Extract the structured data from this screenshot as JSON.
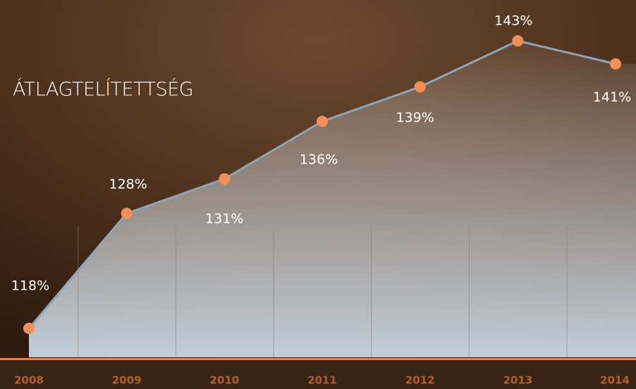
{
  "chart_data": {
    "type": "line",
    "title": "ÁTLAGTELÍTETTSÉG",
    "categories": [
      "2008",
      "2009",
      "2010",
      "2011",
      "2012",
      "2013",
      "2014"
    ],
    "values": [
      118,
      128,
      131,
      136,
      139,
      143,
      141
    ],
    "value_labels": [
      "118%",
      "128%",
      "131%",
      "136%",
      "139%",
      "143%",
      "141%"
    ],
    "line_color": "#8fa4b4",
    "marker_color": "#f48f58"
  }
}
